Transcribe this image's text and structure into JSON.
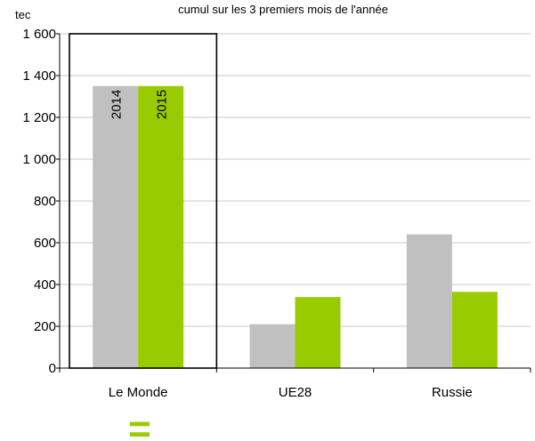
{
  "chart_data": {
    "type": "bar",
    "title": "cumul sur les 3 premiers mois de l'année",
    "ylabel": "tec",
    "xlabel": "",
    "ylim": [
      0,
      1600
    ],
    "yticks": [
      0,
      200,
      400,
      600,
      800,
      1000,
      1200,
      1400,
      1600
    ],
    "ytick_labels": [
      "0",
      "200",
      "400",
      "600",
      "800",
      "1 000",
      "1 200",
      "1 400",
      "1 600"
    ],
    "categories": [
      "Le Monde",
      "UE28",
      "Russie"
    ],
    "series": [
      {
        "name": "2014",
        "values": [
          1350,
          210,
          640
        ]
      },
      {
        "name": "2015",
        "values": [
          1350,
          340,
          365
        ]
      }
    ],
    "grid": true,
    "legend": "none",
    "highlighted_category": "Le Monde",
    "bar_labels_category": "Le Monde",
    "annotation": "=",
    "colors": {
      "series": [
        "#c0c0c0",
        "#99cc00"
      ],
      "grid": "#c8c8c8",
      "axis": "#000000",
      "highlight_box": "#000000",
      "annotation": "#99cc00"
    }
  }
}
